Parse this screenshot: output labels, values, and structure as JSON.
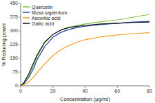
{
  "chart_data": {
    "type": "line",
    "xlabel": "Concentration (μg/mℓ)",
    "ylabel": "% Reducing power",
    "x": [
      0,
      2,
      5,
      8,
      10,
      15,
      20,
      25,
      30,
      35,
      40,
      50,
      60,
      70,
      80
    ],
    "series": [
      {
        "name": "Quercetin",
        "color": "#7fc244",
        "values": [
          0,
          15,
          55,
          110,
          155,
          235,
          280,
          305,
          320,
          330,
          338,
          350,
          360,
          375,
          390
        ]
      },
      {
        "name": "Musa sapientum",
        "color": "#2244aa",
        "values": [
          0,
          12,
          45,
          95,
          140,
          215,
          265,
          292,
          308,
          318,
          326,
          335,
          342,
          348,
          352
        ]
      },
      {
        "name": "Ascorbic acid",
        "color": "#f5a020",
        "values": [
          0,
          6,
          22,
          48,
          70,
          120,
          165,
          198,
          220,
          238,
          252,
          268,
          278,
          285,
          290
        ]
      },
      {
        "name": "Gallic acid",
        "color": "#111111",
        "values": [
          0,
          18,
          65,
          125,
          165,
          240,
          280,
          305,
          318,
          325,
          330,
          338,
          342,
          346,
          348
        ]
      }
    ],
    "xlim": [
      0,
      80
    ],
    "ylim": [
      0,
      450
    ],
    "xticks": [
      0,
      20,
      40,
      60,
      80
    ],
    "yticks": [
      0,
      75,
      150,
      225,
      300,
      375,
      450
    ],
    "grid": false,
    "legend": "upper left"
  }
}
